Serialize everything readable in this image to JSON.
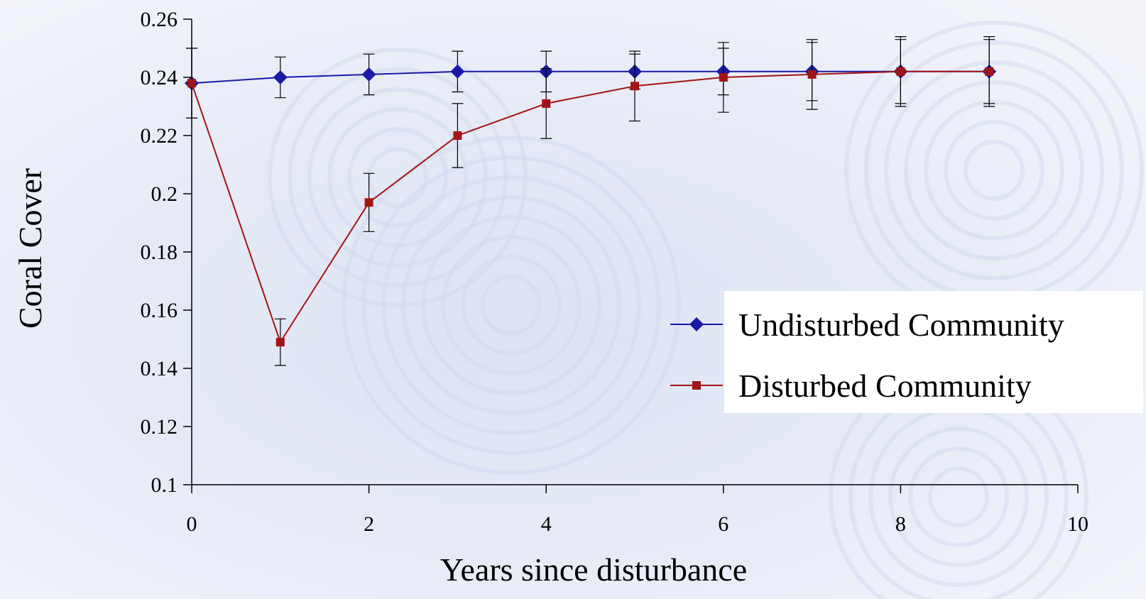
{
  "chart_data": {
    "type": "line",
    "xlabel": "Years since disturbance",
    "ylabel": "Coral Cover",
    "xlim": [
      0,
      10
    ],
    "ylim": [
      0.1,
      0.26
    ],
    "x_ticks": [
      "0",
      "2",
      "4",
      "6",
      "8",
      "10"
    ],
    "y_ticks": [
      "0.1",
      "0.12",
      "0.14",
      "0.16",
      "0.18",
      "0.2",
      "0.22",
      "0.24",
      "0.26"
    ],
    "grid": false,
    "legend_position": "right",
    "series": [
      {
        "name": "Undisturbed Community",
        "color": "#1a1aa6",
        "marker": "diamond",
        "x": [
          0,
          1,
          2,
          3,
          4,
          5,
          6,
          7,
          8,
          9
        ],
        "y": [
          0.238,
          0.24,
          0.241,
          0.242,
          0.242,
          0.242,
          0.242,
          0.242,
          0.242,
          0.242
        ],
        "err": [
          0.012,
          0.007,
          0.007,
          0.007,
          0.007,
          0.006,
          0.008,
          0.01,
          0.011,
          0.011
        ]
      },
      {
        "name": "Disturbed Community",
        "color": "#a31515",
        "marker": "square",
        "x": [
          0,
          1,
          2,
          3,
          4,
          5,
          6,
          7,
          8,
          9
        ],
        "y": [
          0.238,
          0.149,
          0.197,
          0.22,
          0.231,
          0.237,
          0.24,
          0.241,
          0.242,
          0.242
        ],
        "err": [
          0.012,
          0.008,
          0.01,
          0.011,
          0.012,
          0.012,
          0.012,
          0.012,
          0.012,
          0.012
        ]
      }
    ]
  }
}
